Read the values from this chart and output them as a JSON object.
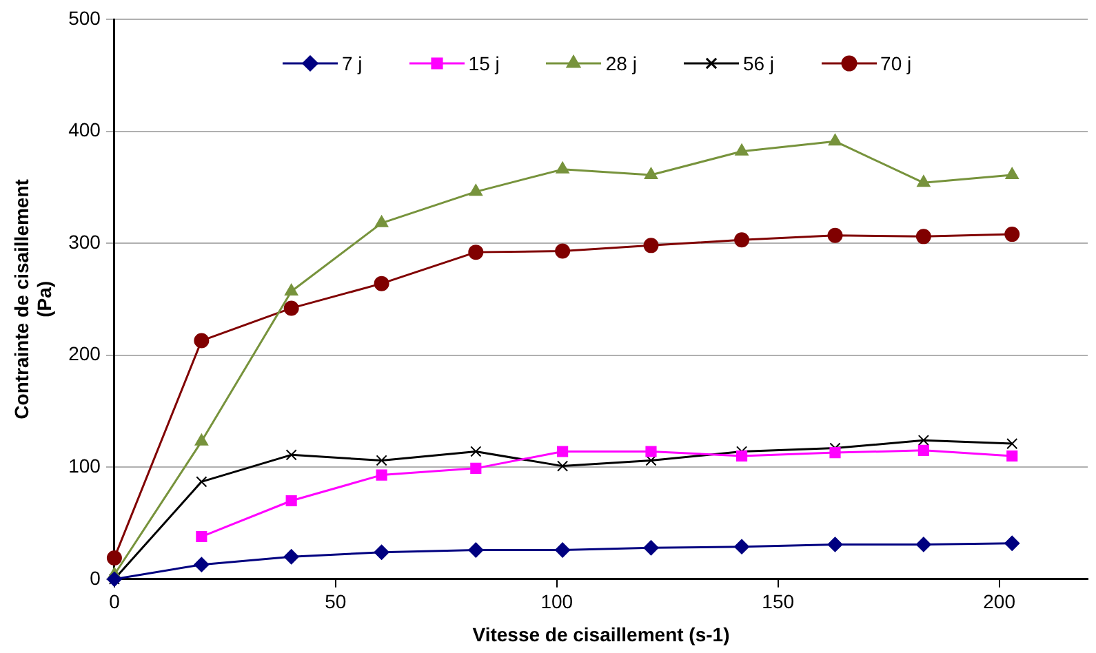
{
  "chart_data": {
    "type": "line",
    "xlabel": "Vitesse de cisaillement (s-1)",
    "ylabel": "Contrainte de cisaillement\n(Pa)",
    "x": [
      0,
      19.7,
      40,
      60.4,
      81.7,
      101.3,
      121.3,
      141.8,
      162.9,
      182.9,
      202.9
    ],
    "xlim": [
      0,
      220
    ],
    "xticks": [
      0,
      50,
      100,
      150,
      200
    ],
    "ylim": [
      0,
      500
    ],
    "yticks": [
      0,
      100,
      200,
      300,
      400,
      500
    ],
    "grid": "y",
    "legend": "top",
    "line_style": "solid",
    "series": [
      {
        "name": "7 j",
        "color": "#000080",
        "marker": "diamond",
        "values": [
          0,
          13,
          20,
          24,
          26,
          26,
          28,
          29,
          31,
          31,
          32
        ]
      },
      {
        "name": "15 j",
        "color": "#ff00ff",
        "marker": "square",
        "values": [
          null,
          38,
          70,
          93,
          99,
          114,
          114,
          110,
          113,
          115,
          110
        ]
      },
      {
        "name": "28 j",
        "color": "#77933c",
        "marker": "triangle",
        "values": [
          4,
          123,
          257,
          318,
          346,
          366,
          361,
          382,
          391,
          354,
          361
        ]
      },
      {
        "name": "56 j",
        "color": "#000000",
        "marker": "cross",
        "values": [
          0,
          87,
          111,
          106,
          114,
          101,
          106,
          114,
          117,
          124,
          121
        ]
      },
      {
        "name": "70 j",
        "color": "#800000",
        "marker": "circle",
        "values": [
          19,
          213,
          242,
          264,
          292,
          293,
          298,
          303,
          307,
          306,
          308
        ]
      }
    ]
  }
}
